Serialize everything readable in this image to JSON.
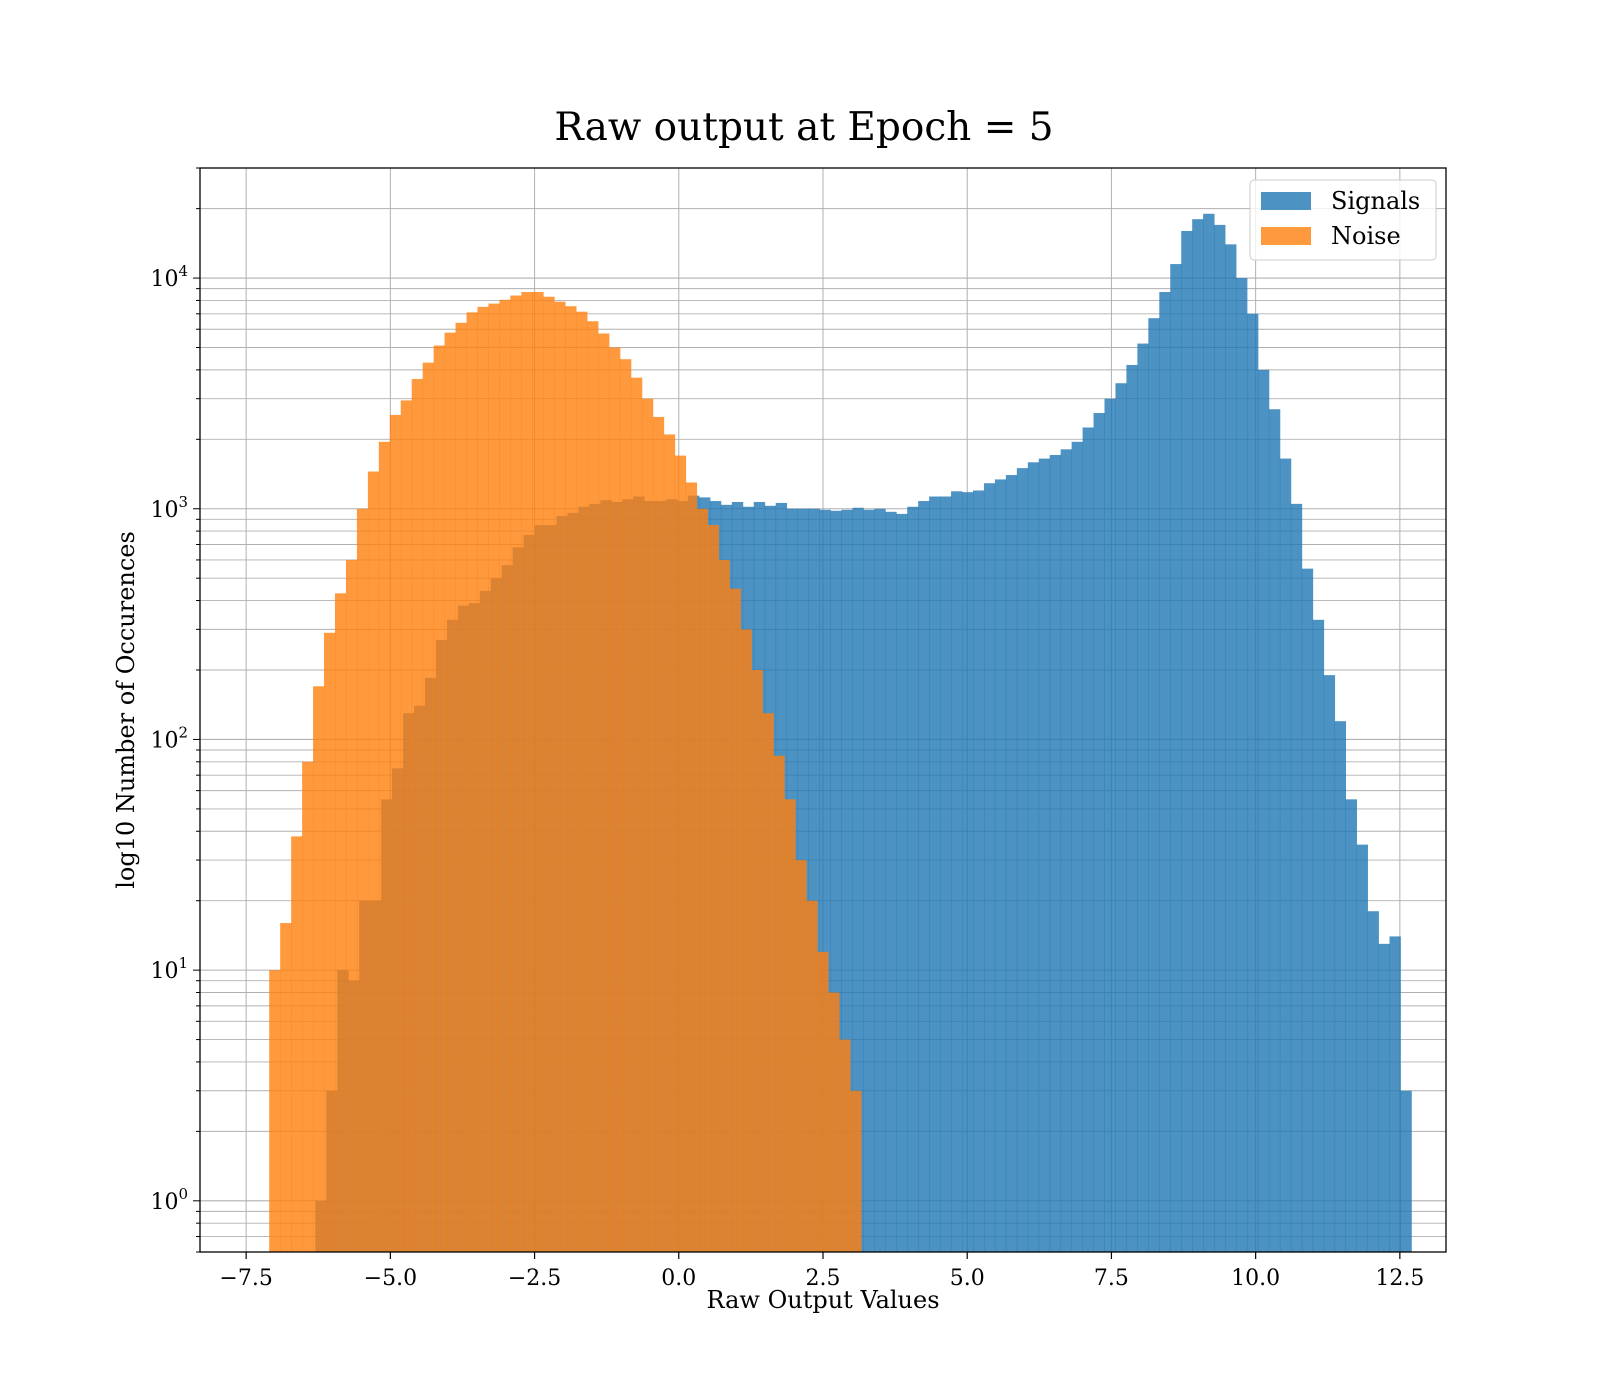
{
  "chart_data": {
    "type": "bar",
    "subtype": "histogram",
    "title": "Raw output at Epoch = 5",
    "xlabel": "Raw Output Values",
    "ylabel": "log10 Number of Occurences",
    "xlim": [
      -8.3,
      13.3
    ],
    "ylim": [
      0.6,
      30000
    ],
    "yscale": "log",
    "grid": true,
    "legend_position": "top-right",
    "x_ticks": [
      -7.5,
      -5.0,
      -2.5,
      0.0,
      2.5,
      5.0,
      7.5,
      10.0,
      12.5
    ],
    "x_tick_labels": [
      "−7.5",
      "−5.0",
      "−2.5",
      "0.0",
      "2.5",
      "5.0",
      "7.5",
      "10.0",
      "12.5"
    ],
    "y_ticks": [
      1,
      10,
      100,
      1000,
      10000
    ],
    "y_tick_labels": [
      {
        "base": "10",
        "exp": "0"
      },
      {
        "base": "10",
        "exp": "1"
      },
      {
        "base": "10",
        "exp": "2"
      },
      {
        "base": "10",
        "exp": "3"
      },
      {
        "base": "10",
        "exp": "4"
      }
    ],
    "bin_width": 0.19,
    "series": [
      {
        "name": "Signals",
        "color": "#1f77b4",
        "opacity": 0.8,
        "start": -6.3,
        "counts": [
          1,
          3,
          10,
          9,
          20,
          20,
          55,
          75,
          130,
          140,
          185,
          270,
          330,
          380,
          390,
          440,
          500,
          570,
          680,
          770,
          850,
          850,
          930,
          960,
          1020,
          1050,
          1090,
          1070,
          1100,
          1130,
          1080,
          1080,
          1100,
          1080,
          1140,
          1120,
          1080,
          1040,
          1070,
          1020,
          1070,
          1030,
          1060,
          1000,
          1000,
          1000,
          990,
          980,
          990,
          1010,
          990,
          1000,
          970,
          950,
          1020,
          1080,
          1130,
          1130,
          1190,
          1180,
          1200,
          1290,
          1340,
          1400,
          1500,
          1590,
          1650,
          1710,
          1810,
          1950,
          2250,
          2600,
          3000,
          3500,
          4200,
          5200,
          6700,
          8700,
          11500,
          16000,
          18000,
          19000,
          17000,
          14000,
          10000,
          7000,
          4000,
          2700,
          1650,
          1050,
          550,
          330,
          190,
          120,
          55,
          35,
          18,
          13,
          14,
          3
        ]
      },
      {
        "name": "Noise",
        "color": "#ff7f0e",
        "opacity": 0.8,
        "start": -7.1,
        "counts": [
          10,
          16,
          38,
          80,
          170,
          290,
          430,
          600,
          1000,
          1450,
          1950,
          2550,
          2950,
          3650,
          4300,
          5100,
          5800,
          6400,
          7100,
          7500,
          7750,
          8050,
          8400,
          8700,
          8700,
          8300,
          7900,
          7550,
          7150,
          6500,
          5750,
          5000,
          4450,
          3700,
          3000,
          2500,
          2100,
          1700,
          1300,
          1000,
          850,
          600,
          450,
          300,
          200,
          130,
          85,
          55,
          30,
          20,
          12,
          8,
          5,
          3
        ]
      }
    ]
  }
}
